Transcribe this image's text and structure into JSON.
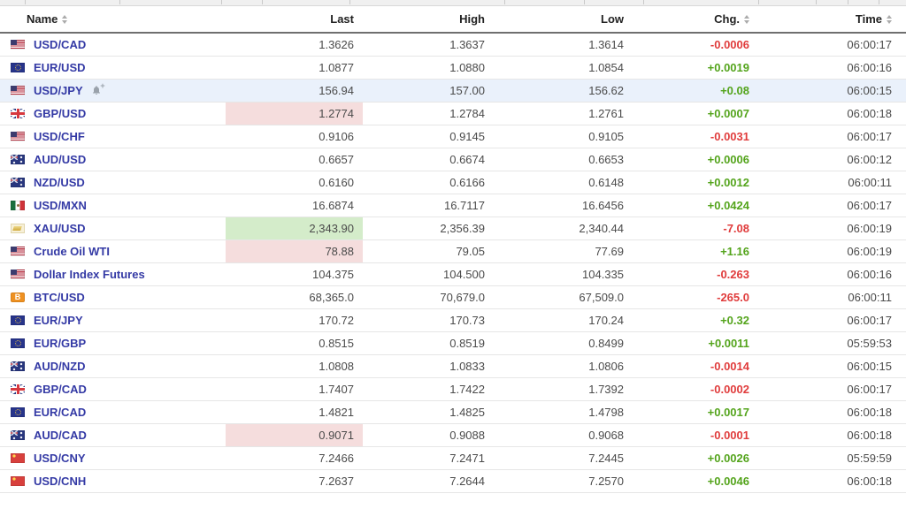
{
  "table": {
    "columns": [
      {
        "label": "Name",
        "sortable": true,
        "align": "left"
      },
      {
        "label": "Last",
        "sortable": false,
        "align": "right"
      },
      {
        "label": "High",
        "sortable": false,
        "align": "right"
      },
      {
        "label": "Low",
        "sortable": false,
        "align": "right"
      },
      {
        "label": "Chg.",
        "sortable": true,
        "align": "right"
      },
      {
        "label": "Time",
        "sortable": true,
        "align": "right"
      }
    ],
    "rows": [
      {
        "flag": "us",
        "name": "USD/CAD",
        "last": "1.3626",
        "high": "1.3637",
        "low": "1.3614",
        "chg": "-0.0006",
        "chg_dir": "down",
        "time": "06:00:17"
      },
      {
        "flag": "eu",
        "name": "EUR/USD",
        "last": "1.0877",
        "high": "1.0880",
        "low": "1.0854",
        "chg": "+0.0019",
        "chg_dir": "up",
        "time": "06:00:16"
      },
      {
        "flag": "us",
        "name": "USD/JPY",
        "alert": true,
        "row_highlight": true,
        "last": "156.94",
        "high": "157.00",
        "low": "156.62",
        "chg": "+0.08",
        "chg_dir": "up",
        "time": "06:00:15"
      },
      {
        "flag": "uk",
        "name": "GBP/USD",
        "last_flash": "down",
        "last": "1.2774",
        "high": "1.2784",
        "low": "1.2761",
        "chg": "+0.0007",
        "chg_dir": "up",
        "time": "06:00:18"
      },
      {
        "flag": "us",
        "name": "USD/CHF",
        "last": "0.9106",
        "high": "0.9145",
        "low": "0.9105",
        "chg": "-0.0031",
        "chg_dir": "down",
        "time": "06:00:17"
      },
      {
        "flag": "au",
        "name": "AUD/USD",
        "last": "0.6657",
        "high": "0.6674",
        "low": "0.6653",
        "chg": "+0.0006",
        "chg_dir": "up",
        "time": "06:00:12"
      },
      {
        "flag": "nz",
        "name": "NZD/USD",
        "last": "0.6160",
        "high": "0.6166",
        "low": "0.6148",
        "chg": "+0.0012",
        "chg_dir": "up",
        "time": "06:00:11"
      },
      {
        "flag": "mx",
        "name": "USD/MXN",
        "last": "16.6874",
        "high": "16.7117",
        "low": "16.6456",
        "chg": "+0.0424",
        "chg_dir": "up",
        "time": "06:00:17"
      },
      {
        "flag": "xau",
        "name": "XAU/USD",
        "last_flash": "up",
        "last": "2,343.90",
        "high": "2,356.39",
        "low": "2,340.44",
        "chg": "-7.08",
        "chg_dir": "down",
        "time": "06:00:19"
      },
      {
        "flag": "us",
        "name": "Crude Oil WTI",
        "last_flash": "down",
        "last": "78.88",
        "high": "79.05",
        "low": "77.69",
        "chg": "+1.16",
        "chg_dir": "up",
        "time": "06:00:19"
      },
      {
        "flag": "us",
        "name": "Dollar Index Futures",
        "last": "104.375",
        "high": "104.500",
        "low": "104.335",
        "chg": "-0.263",
        "chg_dir": "down",
        "time": "06:00:16"
      },
      {
        "flag": "btc",
        "name": "BTC/USD",
        "last": "68,365.0",
        "high": "70,679.0",
        "low": "67,509.0",
        "chg": "-265.0",
        "chg_dir": "down",
        "time": "06:00:11"
      },
      {
        "flag": "eu",
        "name": "EUR/JPY",
        "last": "170.72",
        "high": "170.73",
        "low": "170.24",
        "chg": "+0.32",
        "chg_dir": "up",
        "time": "06:00:17"
      },
      {
        "flag": "eu",
        "name": "EUR/GBP",
        "last": "0.8515",
        "high": "0.8519",
        "low": "0.8499",
        "chg": "+0.0011",
        "chg_dir": "up",
        "time": "05:59:53"
      },
      {
        "flag": "au",
        "name": "AUD/NZD",
        "last": "1.0808",
        "high": "1.0833",
        "low": "1.0806",
        "chg": "-0.0014",
        "chg_dir": "down",
        "time": "06:00:15"
      },
      {
        "flag": "uk",
        "name": "GBP/CAD",
        "last": "1.7407",
        "high": "1.7422",
        "low": "1.7392",
        "chg": "-0.0002",
        "chg_dir": "down",
        "time": "06:00:17"
      },
      {
        "flag": "eu",
        "name": "EUR/CAD",
        "last": "1.4821",
        "high": "1.4825",
        "low": "1.4798",
        "chg": "+0.0017",
        "chg_dir": "up",
        "time": "06:00:18"
      },
      {
        "flag": "au",
        "name": "AUD/CAD",
        "last_flash": "down",
        "last": "0.9071",
        "high": "0.9088",
        "low": "0.9068",
        "chg": "-0.0001",
        "chg_dir": "down",
        "time": "06:00:18"
      },
      {
        "flag": "cn",
        "name": "USD/CNY",
        "last": "7.2466",
        "high": "7.2471",
        "low": "7.2445",
        "chg": "+0.0026",
        "chg_dir": "up",
        "time": "05:59:59"
      },
      {
        "flag": "cn",
        "name": "USD/CNH",
        "last": "7.2637",
        "high": "7.2644",
        "low": "7.2570",
        "chg": "+0.0046",
        "chg_dir": "up",
        "time": "06:00:18"
      }
    ]
  },
  "colors": {
    "link_blue": "#343aa5",
    "chg_up": "#54a41c",
    "chg_down": "#e03c3c",
    "row_highlight": "#eaf1fb",
    "flash_down": "#f5dddd",
    "flash_up": "#d4ecca"
  },
  "icons": {
    "alert": "bell-plus-icon",
    "sort": "sort-arrows-icon"
  }
}
